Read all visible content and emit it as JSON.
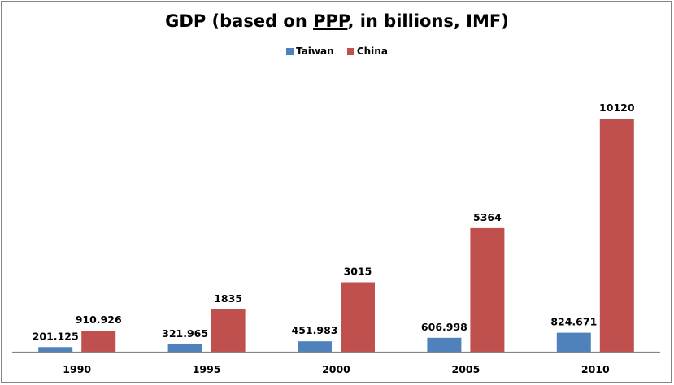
{
  "chart_data": {
    "type": "bar",
    "title_parts": [
      "GDP (based on ",
      "PPP",
      ", in billions, IMF)"
    ],
    "title": "GDP (based on PPP, in billions, IMF)",
    "xlabel": "",
    "ylabel": "",
    "categories": [
      "1990",
      "1995",
      "2000",
      "2005",
      "2010"
    ],
    "series": [
      {
        "name": "Taiwan",
        "color": "#4F81BD",
        "values": [
          201.125,
          321.965,
          451.983,
          606.998,
          824.671
        ],
        "labels": [
          "201.125",
          "321.965",
          "451.983",
          "606.998",
          "824.671"
        ]
      },
      {
        "name": "China",
        "color": "#C0504D",
        "values": [
          910.926,
          1835,
          3015,
          5364,
          10120
        ],
        "labels": [
          "910.926",
          "1835",
          "3015",
          "5364",
          "10120"
        ]
      }
    ],
    "ylim": [
      0,
      10120
    ],
    "grid": false,
    "legend": "top",
    "data_labels": true
  }
}
